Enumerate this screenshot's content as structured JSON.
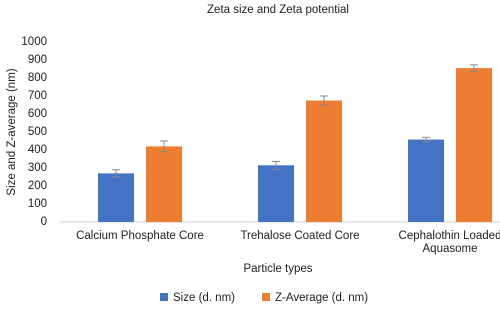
{
  "chart_data": {
    "type": "bar",
    "title": "Zeta size and Zeta potential",
    "x_label": "Particle types",
    "y_label": "Size and Z-average (nm)",
    "categories": [
      "Calcium Phosphate Core",
      "Trehalose Coated Core",
      "Cephalothin Loaded Aquasome"
    ],
    "series": [
      {
        "name": "Size (d. nm)",
        "color": "#4472c4",
        "values": [
          270,
          315,
          458
        ],
        "errors": [
          20,
          22,
          12
        ]
      },
      {
        "name": "Z-Average (d. nm)",
        "color": "#ed7d31",
        "values": [
          420,
          675,
          855
        ],
        "errors": [
          30,
          25,
          18
        ]
      }
    ],
    "ylim": [
      0,
      1000
    ],
    "yticks": [
      0,
      100,
      200,
      300,
      400,
      500,
      600,
      700,
      800,
      900,
      1000
    ],
    "grid": false,
    "legend": "bottom"
  }
}
